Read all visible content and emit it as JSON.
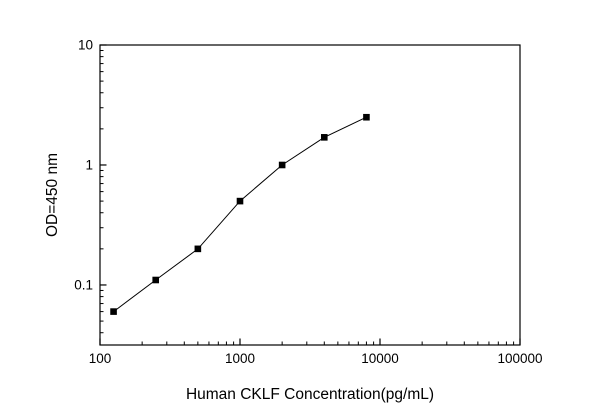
{
  "chart_data": {
    "type": "line",
    "title": "",
    "xlabel": "Human CKLF Concentration(pg/mL)",
    "ylabel": "OD=450 nm",
    "xscale": "log",
    "yscale": "log",
    "xlim": [
      100,
      100000
    ],
    "ylim": [
      0.0316,
      10
    ],
    "x": [
      125,
      250,
      500,
      1000,
      2000,
      4000,
      8000
    ],
    "y": [
      0.06,
      0.11,
      0.2,
      0.5,
      1.0,
      1.7,
      2.5
    ],
    "x_ticks": [
      {
        "value": 100,
        "label": "100"
      },
      {
        "value": 1000,
        "label": "1000"
      },
      {
        "value": 10000,
        "label": "10000"
      },
      {
        "value": 100000,
        "label": "100000"
      }
    ],
    "y_ticks": [
      {
        "value": 0.1,
        "label": "0.1"
      },
      {
        "value": 1,
        "label": "1"
      },
      {
        "value": 10,
        "label": "10"
      }
    ],
    "line_color": "#000000",
    "marker_color": "#000000",
    "marker": "square",
    "grid": "off",
    "legend": "none"
  }
}
